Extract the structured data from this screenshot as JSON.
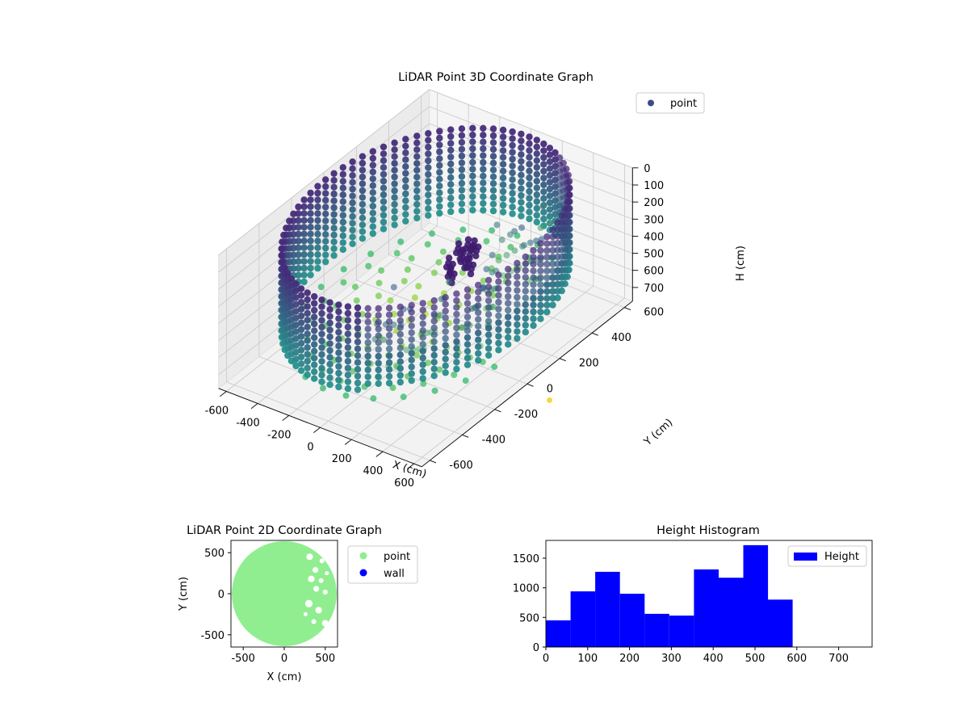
{
  "chart_data": [
    {
      "type": "scatter",
      "title": "LiDAR Point 3D Coordinate Graph",
      "xlabel": "X (cm)",
      "ylabel": "Y (cm)",
      "zlabel": "H (cm)",
      "xlim": [
        -650,
        650
      ],
      "ylim": [
        -650,
        650
      ],
      "zlim": [
        0,
        780
      ],
      "z_inverted": true,
      "x_ticks": [
        -600,
        -400,
        -200,
        0,
        200,
        400,
        600
      ],
      "y_ticks": [
        -600,
        -400,
        -200,
        0,
        200,
        400,
        600
      ],
      "z_ticks": [
        0,
        100,
        200,
        300,
        400,
        500,
        600,
        700
      ],
      "grid": true,
      "colormap": "viridis",
      "legend": {
        "placement": "top-right",
        "entries": [
          {
            "name": "point",
            "color": "#3b4a8c"
          }
        ]
      },
      "wall": {
        "radius": 640,
        "h_top": 40,
        "h_bottom": 520,
        "color_top": "#472b7a",
        "color_bottom": "#27908d"
      },
      "floor": {
        "radius": 600,
        "h": 600,
        "color_center": "#bde038",
        "color_edge": "#3fbc73"
      },
      "cluster": [
        [
          150,
          60,
          180
        ],
        [
          200,
          40,
          200
        ],
        [
          140,
          10,
          230
        ],
        [
          220,
          90,
          160
        ],
        [
          180,
          -20,
          250
        ],
        [
          250,
          30,
          210
        ],
        [
          160,
          110,
          190
        ]
      ]
    },
    {
      "type": "scatter",
      "title": "LiDAR Point 2D Coordinate Graph",
      "xlabel": "X (cm)",
      "ylabel": "Y (cm)",
      "xlim": [
        -650,
        650
      ],
      "ylim": [
        -650,
        650
      ],
      "x_ticks": [
        -500,
        0,
        500
      ],
      "y_ticks": [
        -500,
        0,
        500
      ],
      "legend": {
        "placement": "outside-right",
        "entries": [
          {
            "name": "point",
            "color": "#90ee90"
          },
          {
            "name": "wall",
            "color": "#0000ff"
          }
        ]
      },
      "disk": {
        "center": [
          0,
          0
        ],
        "radius": 640,
        "color": "#90ee90"
      },
      "gaps": [
        [
          310,
          450,
          40
        ],
        [
          380,
          290,
          35
        ],
        [
          330,
          180,
          40
        ],
        [
          450,
          160,
          30
        ],
        [
          390,
          60,
          35
        ],
        [
          500,
          20,
          30
        ],
        [
          300,
          -120,
          45
        ],
        [
          420,
          -200,
          40
        ],
        [
          360,
          -340,
          30
        ],
        [
          500,
          -360,
          40
        ],
        [
          260,
          -250,
          25
        ],
        [
          460,
          400,
          30
        ],
        [
          520,
          250,
          25
        ]
      ]
    },
    {
      "type": "bar",
      "title": "Height Histogram",
      "xlabel": "",
      "ylabel": "",
      "xlim": [
        0,
        780
      ],
      "ylim": [
        0,
        1800
      ],
      "x_ticks": [
        0,
        100,
        200,
        300,
        400,
        500,
        600,
        700
      ],
      "y_ticks": [
        0,
        500,
        1000,
        1500
      ],
      "bin_edges": [
        0,
        59,
        118,
        177,
        236,
        295,
        354,
        413,
        472,
        531,
        590
      ],
      "values": [
        450,
        940,
        1270,
        900,
        560,
        530,
        1310,
        1170,
        1720,
        800
      ],
      "color": "#0000ff",
      "legend": {
        "placement": "top-right",
        "entries": [
          {
            "name": "Height",
            "color": "#0000ff"
          }
        ]
      }
    }
  ]
}
